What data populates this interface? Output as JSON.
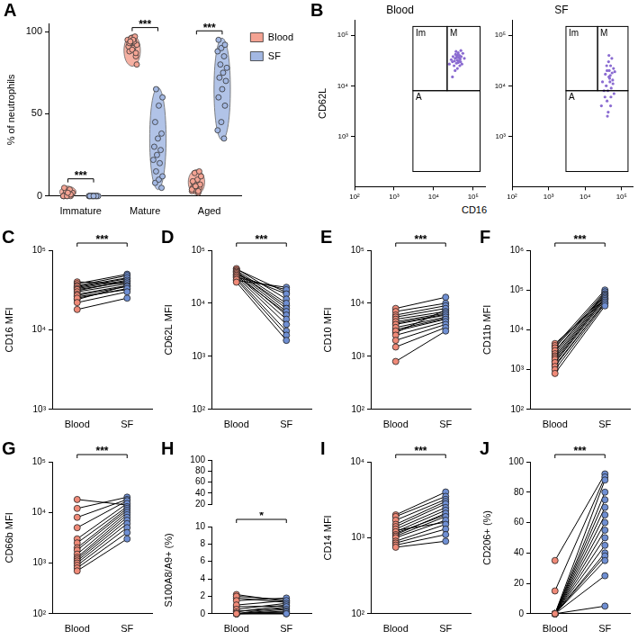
{
  "chart_data": [
    {
      "panel": "A",
      "type": "violin",
      "y_label": "% of neutrophils",
      "categories": [
        "Immature",
        "Mature",
        "Aged"
      ],
      "ylim": [
        0,
        105
      ],
      "yticks": [
        0,
        50,
        100
      ],
      "grid": false,
      "legend": "right",
      "annotations": [
        "***",
        "***",
        "***"
      ],
      "series": [
        {
          "name": "Blood",
          "color": "#f4a393",
          "values": [
            [
              0,
              0,
              0,
              0,
              1,
              1,
              1,
              2,
              2,
              3,
              4,
              0,
              0,
              1,
              5,
              2
            ],
            [
              85,
              88,
              90,
              92,
              93,
              94,
              95,
              96,
              97,
              91,
              89,
              87,
              93,
              95,
              80,
              94
            ],
            [
              2,
              3,
              4,
              5,
              5,
              6,
              7,
              8,
              10,
              12,
              14,
              3,
              4,
              6,
              15,
              9
            ]
          ]
        },
        {
          "name": "SF",
          "color": "#a3b8e3",
          "values": [
            [
              0,
              0,
              0,
              0,
              0,
              0,
              0,
              0,
              0,
              0,
              0,
              0,
              0,
              0,
              0,
              0
            ],
            [
              5,
              8,
              10,
              12,
              15,
              20,
              22,
              25,
              28,
              30,
              35,
              38,
              45,
              55,
              60,
              65
            ],
            [
              35,
              40,
              45,
              55,
              60,
              65,
              70,
              72,
              75,
              78,
              80,
              85,
              88,
              90,
              92,
              95
            ]
          ]
        }
      ]
    },
    {
      "panel": "B",
      "type": "scatter",
      "x_label": "CD16",
      "y_label": "CD62L",
      "log": true,
      "grid": false,
      "xlim": [
        100,
        200000
      ],
      "ylim": [
        100,
        200000
      ],
      "xticks": [
        {
          "value": 100,
          "label": "10²"
        },
        {
          "value": 1000,
          "label": "10³"
        },
        {
          "value": 10000,
          "label": "10⁴"
        },
        {
          "value": 100000,
          "label": "10⁵"
        }
      ],
      "yticks": [
        {
          "value": 1000,
          "label": "10³"
        },
        {
          "value": 10000,
          "label": "10⁴"
        },
        {
          "value": 100000,
          "label": "10⁵"
        }
      ],
      "gates": [
        {
          "label": "Im",
          "x": [
            3000,
            22000
          ],
          "y": [
            8000,
            150000
          ]
        },
        {
          "label": "M",
          "x": [
            22000,
            150000
          ],
          "y": [
            8000,
            150000
          ]
        },
        {
          "label": "A",
          "x": [
            3000,
            150000
          ],
          "y": [
            200,
            8000
          ]
        }
      ],
      "plots": [
        {
          "title": "Blood",
          "color": "#8a6bd1",
          "points": [
            [
              30000,
              30000
            ],
            [
              35000,
              35000
            ],
            [
              40000,
              32000
            ],
            [
              45000,
              40000
            ],
            [
              38000,
              28000
            ],
            [
              42000,
              45000
            ],
            [
              50000,
              38000
            ],
            [
              33000,
              25000
            ],
            [
              36000,
              42000
            ],
            [
              48000,
              30000
            ],
            [
              28000,
              33000
            ],
            [
              55000,
              44000
            ],
            [
              40000,
              22000
            ],
            [
              44000,
              36000
            ],
            [
              37000,
              48000
            ],
            [
              52000,
              27000
            ],
            [
              31000,
              38000
            ],
            [
              46000,
              25000
            ],
            [
              39000,
              39000
            ],
            [
              43000,
              31000
            ],
            [
              60000,
              35000
            ],
            [
              25000,
              27000
            ],
            [
              34000,
              31000
            ],
            [
              41000,
              41000
            ],
            [
              47000,
              34000
            ],
            [
              35000,
              20000
            ],
            [
              30000,
              15000
            ],
            [
              49000,
              50000
            ],
            [
              38000,
              36000
            ],
            [
              42000,
              29000
            ]
          ]
        },
        {
          "title": "SF",
          "color": "#8a6bd1",
          "points": [
            [
              40000,
              20000
            ],
            [
              45000,
              15000
            ],
            [
              50000,
              25000
            ],
            [
              38000,
              10000
            ],
            [
              42000,
              8000
            ],
            [
              55000,
              18000
            ],
            [
              48000,
              12000
            ],
            [
              35000,
              6000
            ],
            [
              60000,
              22000
            ],
            [
              44000,
              30000
            ],
            [
              52000,
              9000
            ],
            [
              40000,
              5000
            ],
            [
              47000,
              14000
            ],
            [
              58000,
              11000
            ],
            [
              36000,
              17000
            ],
            [
              50000,
              4000
            ],
            [
              43000,
              3000
            ],
            [
              62000,
              7000
            ],
            [
              30000,
              12000
            ],
            [
              46000,
              20000
            ],
            [
              54000,
              35000
            ],
            [
              39000,
              25000
            ],
            [
              49000,
              16000
            ],
            [
              41000,
              2500
            ],
            [
              57000,
              13000
            ],
            [
              33000,
              8000
            ],
            [
              45000,
              40000
            ],
            [
              51000,
              6000
            ],
            [
              28000,
              4000
            ],
            [
              65000,
              19000
            ]
          ]
        }
      ]
    },
    {
      "panel": "C",
      "type": "paired",
      "y_label": "CD16 MFI",
      "categories": [
        "Blood",
        "SF"
      ],
      "colors": [
        "#f08a78",
        "#6f8fd3"
      ],
      "log": "y",
      "grid": false,
      "ylim": [
        1000,
        100000
      ],
      "yticks": [
        {
          "value": 1000,
          "label": "10³"
        },
        {
          "value": 10000,
          "label": "10⁴"
        },
        {
          "value": 100000,
          "label": "10⁵"
        }
      ],
      "annotation": "***",
      "pairs": [
        [
          18000,
          25000
        ],
        [
          22000,
          30000
        ],
        [
          25000,
          33000
        ],
        [
          27000,
          35000
        ],
        [
          28000,
          36000
        ],
        [
          30000,
          38000
        ],
        [
          32000,
          40000
        ],
        [
          33000,
          42000
        ],
        [
          35000,
          45000
        ],
        [
          36000,
          48000
        ],
        [
          38000,
          50000
        ],
        [
          40000,
          38000
        ],
        [
          26000,
          32000
        ],
        [
          31000,
          41000
        ],
        [
          34000,
          44000
        ],
        [
          24000,
          36000
        ]
      ]
    },
    {
      "panel": "D",
      "type": "paired",
      "y_label": "CD62L MFI",
      "categories": [
        "Blood",
        "SF"
      ],
      "colors": [
        "#f08a78",
        "#6f8fd3"
      ],
      "log": "y",
      "grid": false,
      "ylim": [
        100,
        100000
      ],
      "yticks": [
        {
          "value": 100,
          "label": "10²"
        },
        {
          "value": 1000,
          "label": "10³"
        },
        {
          "value": 10000,
          "label": "10⁴"
        },
        {
          "value": 100000,
          "label": "10⁵"
        }
      ],
      "annotation": "***",
      "pairs": [
        [
          25000,
          2000
        ],
        [
          28000,
          2500
        ],
        [
          30000,
          3000
        ],
        [
          32000,
          4000
        ],
        [
          34000,
          5000
        ],
        [
          36000,
          6000
        ],
        [
          38000,
          7000
        ],
        [
          40000,
          8000
        ],
        [
          42000,
          10000
        ],
        [
          45000,
          12000
        ],
        [
          35000,
          15000
        ],
        [
          31000,
          18000
        ],
        [
          27000,
          20000
        ],
        [
          39000,
          9000
        ],
        [
          33000,
          6500
        ],
        [
          44000,
          16000
        ]
      ]
    },
    {
      "panel": "E",
      "type": "paired",
      "y_label": "CD10 MFI",
      "categories": [
        "Blood",
        "SF"
      ],
      "colors": [
        "#f08a78",
        "#6f8fd3"
      ],
      "log": "y",
      "grid": false,
      "ylim": [
        100,
        100000
      ],
      "yticks": [
        {
          "value": 100,
          "label": "10²"
        },
        {
          "value": 1000,
          "label": "10³"
        },
        {
          "value": 10000,
          "label": "10⁴"
        },
        {
          "value": 100000,
          "label": "10⁵"
        }
      ],
      "annotation": "***",
      "pairs": [
        [
          800,
          3000
        ],
        [
          1500,
          3500
        ],
        [
          2000,
          4000
        ],
        [
          2500,
          4500
        ],
        [
          3000,
          5000
        ],
        [
          3500,
          5500
        ],
        [
          4000,
          6000
        ],
        [
          4500,
          6500
        ],
        [
          5000,
          7000
        ],
        [
          5500,
          8000
        ],
        [
          6000,
          9000
        ],
        [
          7000,
          10000
        ],
        [
          8000,
          13000
        ],
        [
          3200,
          5200
        ],
        [
          4200,
          6200
        ],
        [
          2800,
          7500
        ]
      ]
    },
    {
      "panel": "F",
      "type": "paired",
      "y_label": "CD11b MFI",
      "categories": [
        "Blood",
        "SF"
      ],
      "colors": [
        "#f08a78",
        "#6f8fd3"
      ],
      "log": "y",
      "grid": false,
      "ylim": [
        100,
        1000000
      ],
      "yticks": [
        {
          "value": 100,
          "label": "10²"
        },
        {
          "value": 1000,
          "label": "10³"
        },
        {
          "value": 10000,
          "label": "10⁴"
        },
        {
          "value": 100000,
          "label": "10⁵"
        },
        {
          "value": 1000000,
          "label": "10⁶"
        }
      ],
      "annotation": "***",
      "pairs": [
        [
          800,
          40000
        ],
        [
          1000,
          45000
        ],
        [
          1200,
          50000
        ],
        [
          1500,
          55000
        ],
        [
          1800,
          60000
        ],
        [
          2000,
          65000
        ],
        [
          2200,
          70000
        ],
        [
          2500,
          75000
        ],
        [
          3000,
          80000
        ],
        [
          3500,
          90000
        ],
        [
          4000,
          100000
        ],
        [
          4500,
          58000
        ],
        [
          1600,
          62000
        ],
        [
          2800,
          85000
        ],
        [
          1300,
          48000
        ],
        [
          3800,
          72000
        ]
      ]
    },
    {
      "panel": "G",
      "type": "paired",
      "y_label": "CD66b MFI",
      "categories": [
        "Blood",
        "SF"
      ],
      "colors": [
        "#f08a78",
        "#6f8fd3"
      ],
      "log": "y",
      "grid": false,
      "ylim": [
        100,
        100000
      ],
      "yticks": [
        {
          "value": 100,
          "label": "10²"
        },
        {
          "value": 1000,
          "label": "10³"
        },
        {
          "value": 10000,
          "label": "10⁴"
        },
        {
          "value": 100000,
          "label": "10⁵"
        }
      ],
      "annotation": "***",
      "pairs": [
        [
          700,
          3000
        ],
        [
          800,
          4000
        ],
        [
          900,
          5000
        ],
        [
          1000,
          6000
        ],
        [
          1100,
          7000
        ],
        [
          1200,
          8000
        ],
        [
          1300,
          9000
        ],
        [
          1500,
          10000
        ],
        [
          1800,
          11000
        ],
        [
          2000,
          12000
        ],
        [
          2500,
          13000
        ],
        [
          3000,
          15000
        ],
        [
          5000,
          17000
        ],
        [
          8000,
          18000
        ],
        [
          12000,
          20000
        ],
        [
          18000,
          14000
        ]
      ]
    },
    {
      "panel": "H",
      "type": "paired",
      "y_label": "S100A8/A9+ (%)",
      "categories": [
        "Blood",
        "SF"
      ],
      "colors": [
        "#f08a78",
        "#6f8fd3"
      ],
      "grid": false,
      "ylim": [
        0,
        10
      ],
      "yticks": [
        0,
        2,
        4,
        6,
        8,
        10
      ],
      "ylim_upper": [
        20,
        100
      ],
      "yticks_upper": [
        20,
        40,
        60,
        80,
        100
      ],
      "annotation": "*",
      "pairs": [
        [
          0,
          0
        ],
        [
          0,
          0
        ],
        [
          0,
          0.2
        ],
        [
          0,
          0.3
        ],
        [
          0,
          0.5
        ],
        [
          0,
          0.8
        ],
        [
          0.2,
          1
        ],
        [
          0.5,
          1.2
        ],
        [
          1,
          1.5
        ],
        [
          1.5,
          1.8
        ],
        [
          2,
          1.6
        ],
        [
          2.2,
          1.4
        ],
        [
          0,
          0.1
        ],
        [
          0.3,
          0.6
        ],
        [
          1.8,
          1.3
        ],
        [
          0.8,
          0.9
        ]
      ]
    },
    {
      "panel": "I",
      "type": "paired",
      "y_label": "CD14 MFI",
      "categories": [
        "Blood",
        "SF"
      ],
      "colors": [
        "#f08a78",
        "#6f8fd3"
      ],
      "log": "y",
      "grid": false,
      "ylim": [
        100,
        10000
      ],
      "yticks": [
        {
          "value": 100,
          "label": "10²"
        },
        {
          "value": 1000,
          "label": "10³"
        },
        {
          "value": 10000,
          "label": "10⁴"
        }
      ],
      "annotation": "***",
      "pairs": [
        [
          750,
          900
        ],
        [
          800,
          1100
        ],
        [
          850,
          1300
        ],
        [
          900,
          1500
        ],
        [
          1000,
          1700
        ],
        [
          1050,
          1900
        ],
        [
          1100,
          2100
        ],
        [
          1200,
          2300
        ],
        [
          1300,
          2500
        ],
        [
          1400,
          2800
        ],
        [
          1500,
          3000
        ],
        [
          1700,
          3200
        ],
        [
          1900,
          3500
        ],
        [
          2000,
          4000
        ],
        [
          1150,
          2000
        ],
        [
          1250,
          1600
        ]
      ]
    },
    {
      "panel": "J",
      "type": "paired",
      "y_label": "CD206+ (%)",
      "categories": [
        "Blood",
        "SF"
      ],
      "colors": [
        "#f08a78",
        "#6f8fd3"
      ],
      "grid": false,
      "ylim": [
        0,
        100
      ],
      "yticks": [
        0,
        20,
        40,
        60,
        80,
        100
      ],
      "annotation": "***",
      "pairs": [
        [
          0,
          5
        ],
        [
          0,
          25
        ],
        [
          0,
          35
        ],
        [
          0,
          38
        ],
        [
          0,
          40
        ],
        [
          0,
          45
        ],
        [
          0,
          50
        ],
        [
          0,
          55
        ],
        [
          0,
          60
        ],
        [
          0,
          65
        ],
        [
          0,
          70
        ],
        [
          0,
          75
        ],
        [
          0,
          80
        ],
        [
          0,
          88
        ],
        [
          15,
          90
        ],
        [
          35,
          92
        ]
      ]
    }
  ]
}
